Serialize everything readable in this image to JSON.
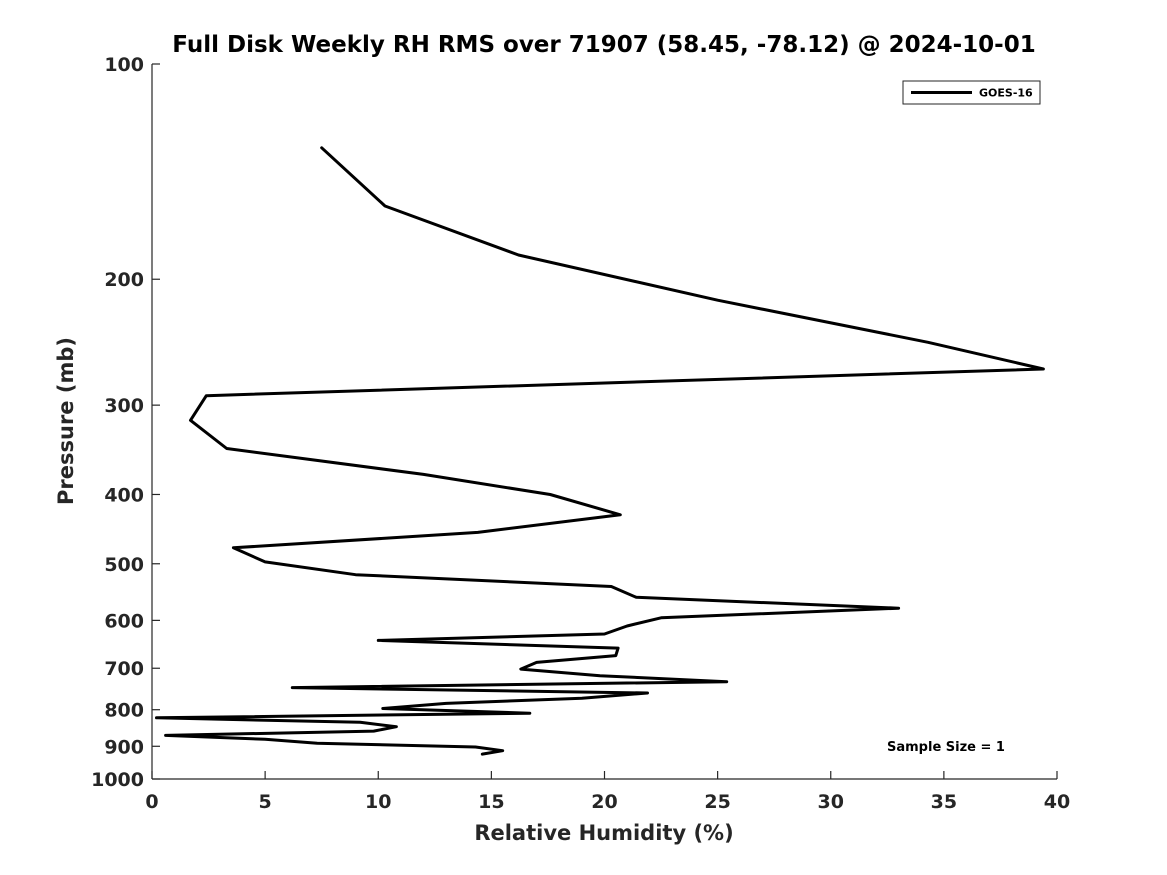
{
  "chart_data": {
    "type": "line",
    "title": "Full Disk Weekly RH RMS over 71907 (58.45, -78.12) @ 2024-10-01",
    "xlabel": "Relative Humidity (%)",
    "ylabel": "Pressure (mb)",
    "xlim": [
      0,
      40
    ],
    "ylim": [
      100,
      1000
    ],
    "y_scale": "log",
    "y_reversed": true,
    "x_ticks": [
      0,
      5,
      10,
      15,
      20,
      25,
      30,
      35,
      40
    ],
    "y_ticks": [
      100,
      200,
      300,
      400,
      500,
      600,
      700,
      800,
      900,
      1000
    ],
    "grid": false,
    "legend_position": "top-right",
    "series": [
      {
        "name": "GOES-16",
        "color": "#000000",
        "points": [
          [
            7.5,
            131
          ],
          [
            10.3,
            158
          ],
          [
            16.2,
            185
          ],
          [
            25.0,
            214
          ],
          [
            34.3,
            245
          ],
          [
            39.4,
            267
          ],
          [
            2.4,
            291
          ],
          [
            1.7,
            315
          ],
          [
            3.3,
            345
          ],
          [
            12.0,
            375
          ],
          [
            17.6,
            400
          ],
          [
            20.7,
            427
          ],
          [
            14.4,
            452
          ],
          [
            3.6,
            475
          ],
          [
            5.0,
            497
          ],
          [
            9.0,
            518
          ],
          [
            20.3,
            538
          ],
          [
            21.4,
            557
          ],
          [
            33.0,
            577
          ],
          [
            22.5,
            595
          ],
          [
            21.0,
            611
          ],
          [
            20.0,
            627
          ],
          [
            10.0,
            640
          ],
          [
            20.6,
            656
          ],
          [
            20.5,
            672
          ],
          [
            17.0,
            687
          ],
          [
            16.3,
            702
          ],
          [
            19.8,
            717
          ],
          [
            25.4,
            731
          ],
          [
            6.2,
            745
          ],
          [
            21.9,
            758
          ],
          [
            19.0,
            771
          ],
          [
            13.0,
            784
          ],
          [
            10.2,
            797
          ],
          [
            16.7,
            809
          ],
          [
            0.2,
            821
          ],
          [
            9.2,
            833
          ],
          [
            10.8,
            845
          ],
          [
            9.8,
            857
          ],
          [
            0.6,
            869
          ],
          [
            5.0,
            880
          ],
          [
            7.3,
            891
          ],
          [
            14.3,
            902
          ],
          [
            15.5,
            913
          ],
          [
            14.6,
            923
          ]
        ]
      }
    ],
    "annotations": [
      {
        "text": "Sample Size = 1",
        "position": "bottom-right"
      }
    ]
  }
}
